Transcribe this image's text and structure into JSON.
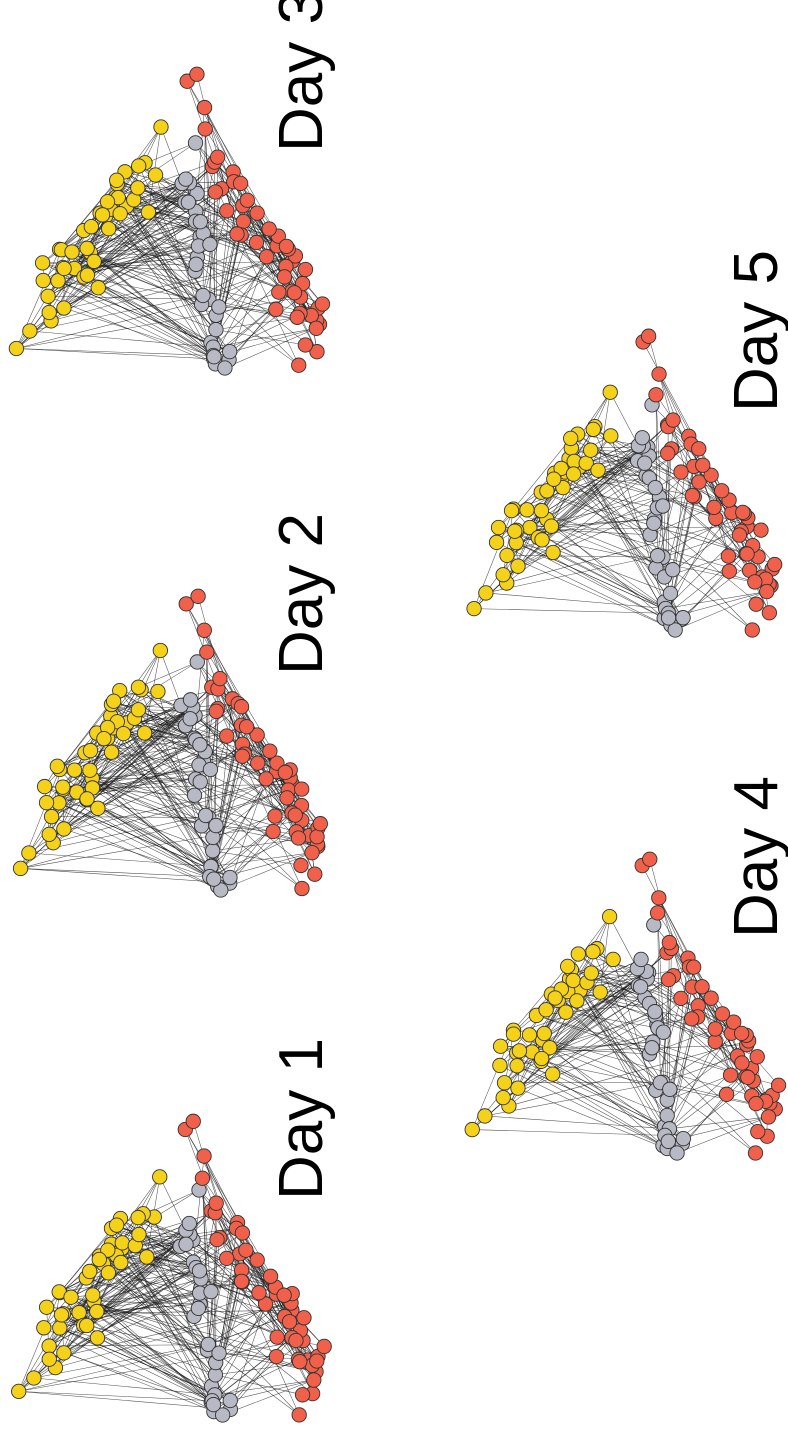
{
  "panels": [
    {
      "id": "day-1",
      "label": "Day 1"
    },
    {
      "id": "day-2",
      "label": "Day 2"
    },
    {
      "id": "day-3",
      "label": "Day 3"
    },
    {
      "id": "day-4",
      "label": "Day 4"
    },
    {
      "id": "day-5",
      "label": "Day 5"
    }
  ],
  "colors": {
    "group_yellow": "#f5d21a",
    "group_grey": "#b7b9c4",
    "group_red": "#f0604a",
    "node_outline": "#333333",
    "edge": "#1a1a1a",
    "node_label": "#2a2a8a"
  }
}
